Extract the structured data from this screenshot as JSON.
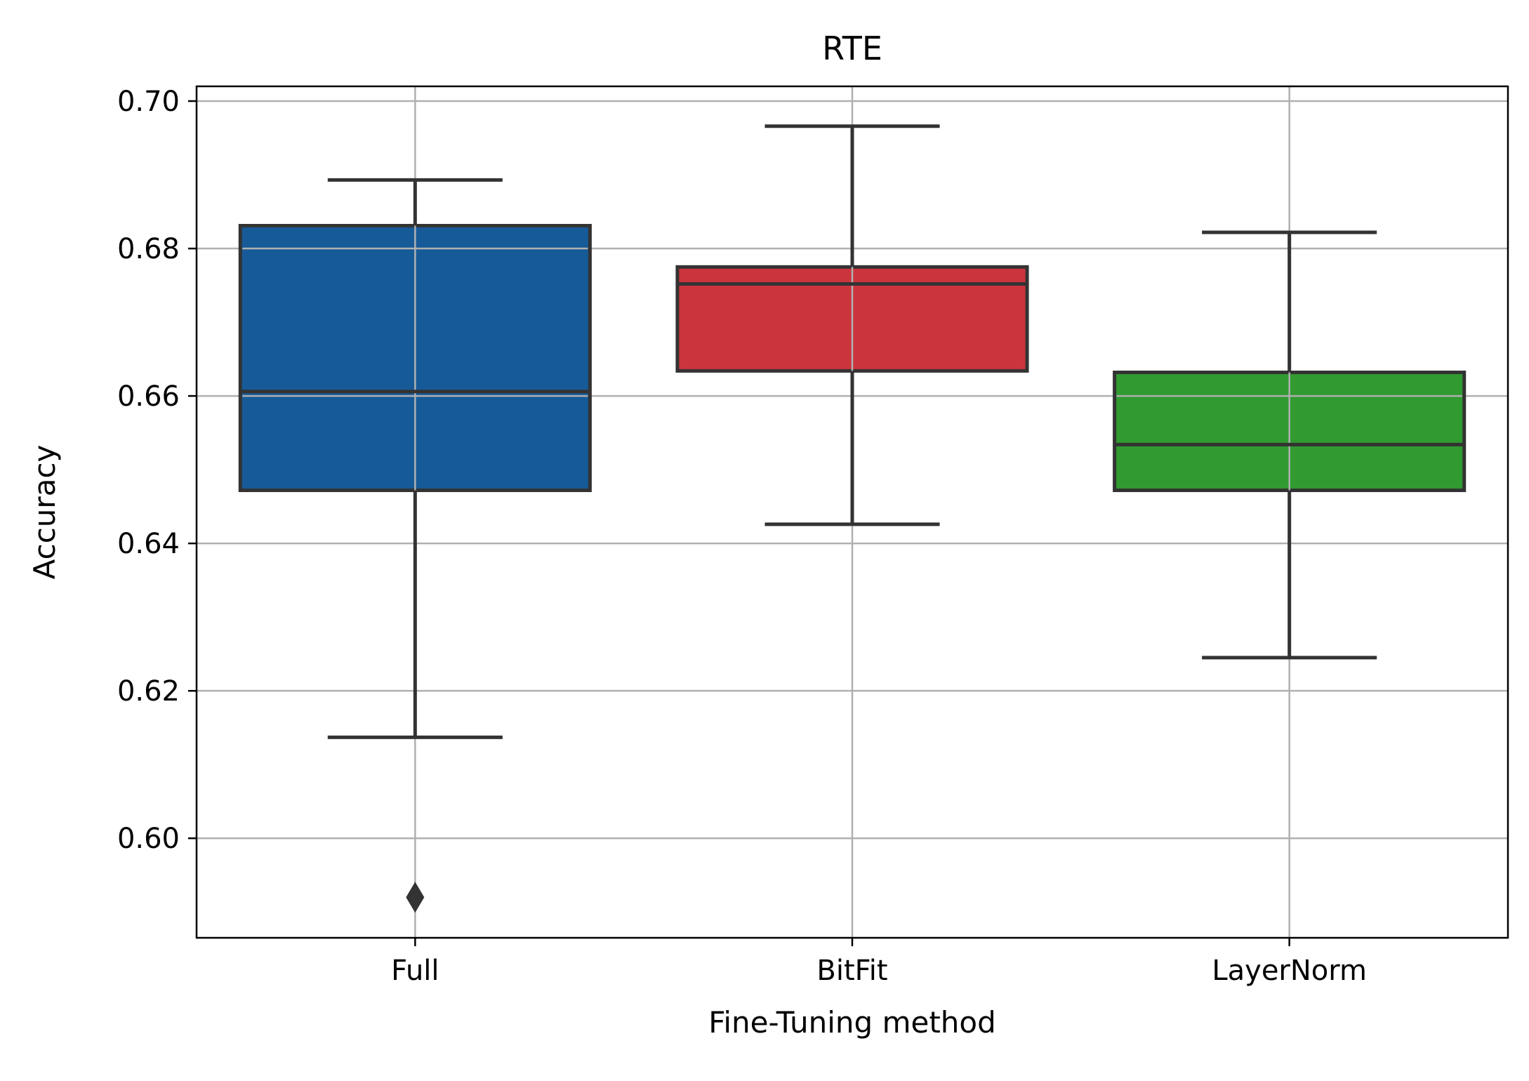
{
  "chart_data": {
    "type": "box",
    "title": "RTE",
    "xlabel": "Fine-Tuning method",
    "ylabel": "Accuracy",
    "ylim": [
      0.5865,
      0.702
    ],
    "yticks": [
      "0.60",
      "0.62",
      "0.64",
      "0.66",
      "0.68",
      "0.70"
    ],
    "ytick_values": [
      0.6,
      0.62,
      0.64,
      0.66,
      0.68,
      0.7
    ],
    "grid": true,
    "categories": [
      "Full",
      "BitFit",
      "LayerNorm"
    ],
    "boxes": [
      {
        "category": "Full",
        "whisker_low": 0.6137,
        "q1": 0.6472,
        "median": 0.6606,
        "q3": 0.6831,
        "whisker_high": 0.6893,
        "outliers": [
          0.592
        ],
        "color": "#175a98"
      },
      {
        "category": "BitFit",
        "whisker_low": 0.6426,
        "q1": 0.6634,
        "median": 0.6752,
        "q3": 0.6775,
        "whisker_high": 0.6966,
        "outliers": [],
        "color": "#cc343d"
      },
      {
        "category": "LayerNorm",
        "whisker_low": 0.6245,
        "q1": 0.6472,
        "median": 0.6534,
        "q3": 0.6632,
        "whisker_high": 0.6822,
        "outliers": [],
        "color": "#319a31"
      }
    ]
  }
}
